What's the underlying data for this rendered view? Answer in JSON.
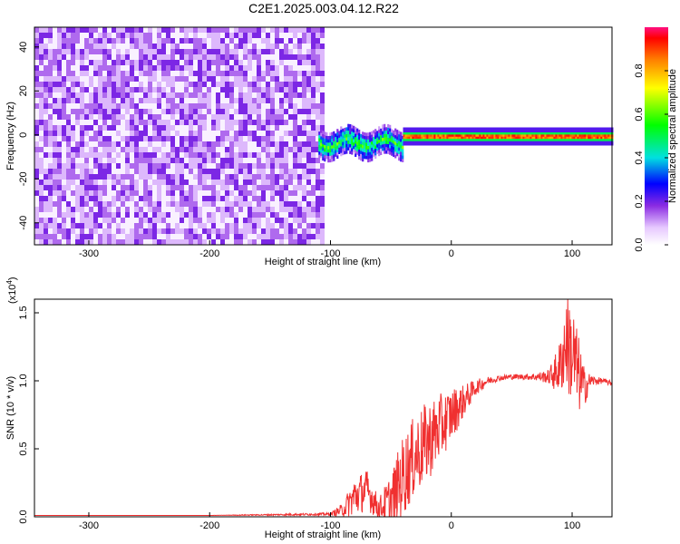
{
  "title": "C2E1.2025.003.04.12.R22",
  "chart_data": [
    {
      "type": "heatmap",
      "xlabel": "Height of straight line (km)",
      "ylabel": "Frequency (Hz)",
      "xlim": [
        -345,
        133
      ],
      "ylim": [
        -50,
        49
      ],
      "xticks": [
        -300,
        -200,
        -100,
        0,
        100
      ],
      "yticks": [
        -40,
        -20,
        0,
        20,
        40
      ],
      "colorbar": {
        "label": "Normalized spectral amplitude",
        "range": [
          0,
          1
        ],
        "ticks": [
          "0.0",
          "0.2",
          "0.4",
          "0.6",
          "0.8"
        ],
        "tick_values": [
          0,
          0.2,
          0.4,
          0.6,
          0.8
        ]
      },
      "regions": [
        {
          "name": "noise",
          "x_range": [
            -345,
            -105
          ],
          "y_range": [
            -50,
            49
          ],
          "amplitude": 0.18
        },
        {
          "name": "transition",
          "x_range": [
            -110,
            -40
          ],
          "y_center": -3,
          "y_halfwidth": 6,
          "amplitude": 0.4
        },
        {
          "name": "tone",
          "x_range": [
            -40,
            133
          ],
          "y_center": 0,
          "y_halfwidth": 2,
          "amplitude": 0.95
        }
      ]
    },
    {
      "type": "line",
      "xlabel": "Height of straight line (km)",
      "ylabel": "SNR (10 * v/v)",
      "y_multiplier": "(x10",
      "y_multiplier_exp": "4",
      "y_multiplier_close": ")",
      "xlim": [
        -345,
        133
      ],
      "ylim": [
        0,
        1.6
      ],
      "xticks": [
        -300,
        -200,
        -100,
        0,
        100
      ],
      "yticks": [
        0.0,
        0.5,
        1.0,
        1.5
      ],
      "ytick_labels": [
        "0.0",
        "0.5",
        "1.0",
        "1.5"
      ],
      "color": "#f03030",
      "series": [
        {
          "x": [
            -345,
            -200,
            -100,
            -90,
            -80,
            -70,
            -60,
            -50,
            -40,
            -30,
            -20,
            -10,
            0,
            10,
            20,
            30,
            40,
            50,
            60,
            70,
            80,
            85,
            90,
            95,
            100,
            105,
            110,
            115,
            120,
            125,
            133
          ],
          "y": [
            0.01,
            0.01,
            0.02,
            0.05,
            0.15,
            0.2,
            0.06,
            0.12,
            0.3,
            0.45,
            0.55,
            0.65,
            0.75,
            0.85,
            0.95,
            1.0,
            1.02,
            1.03,
            1.03,
            1.03,
            1.03,
            1.05,
            1.1,
            1.3,
            1.2,
            1.05,
            0.95,
            1.0,
            1.0,
            1.0,
            0.98
          ],
          "noise": [
            0,
            0,
            0.01,
            0.05,
            0.15,
            0.15,
            0.08,
            0.2,
            0.3,
            0.3,
            0.3,
            0.25,
            0.2,
            0.12,
            0.06,
            0.03,
            0.02,
            0.02,
            0.02,
            0.03,
            0.05,
            0.12,
            0.2,
            0.35,
            0.4,
            0.3,
            0.15,
            0.05,
            0.03,
            0.02,
            0.02
          ]
        }
      ]
    }
  ]
}
